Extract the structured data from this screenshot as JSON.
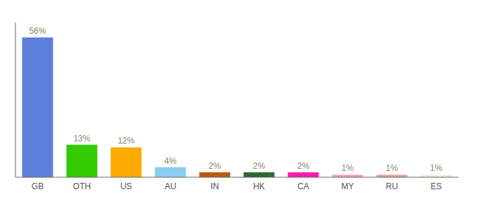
{
  "chart_data": {
    "type": "bar",
    "categories": [
      "GB",
      "OTH",
      "US",
      "AU",
      "IN",
      "HK",
      "CA",
      "MY",
      "RU",
      "ES"
    ],
    "values": [
      56,
      13,
      12,
      4,
      2,
      2,
      2,
      1,
      1,
      1
    ],
    "value_labels": [
      "56%",
      "13%",
      "12%",
      "4%",
      "2%",
      "2%",
      "2%",
      "1%",
      "1%",
      "1%"
    ],
    "colors": [
      "#5b7fdb",
      "#33cc00",
      "#ffaa00",
      "#88ccee",
      "#b85c10",
      "#2d6a2d",
      "#ff1aaa",
      "#ff99bb",
      "#e8a090",
      "#f0edd8"
    ],
    "ylim": [
      0,
      62
    ],
    "data_labels": true,
    "tick_labels": "x",
    "grid": false
  }
}
